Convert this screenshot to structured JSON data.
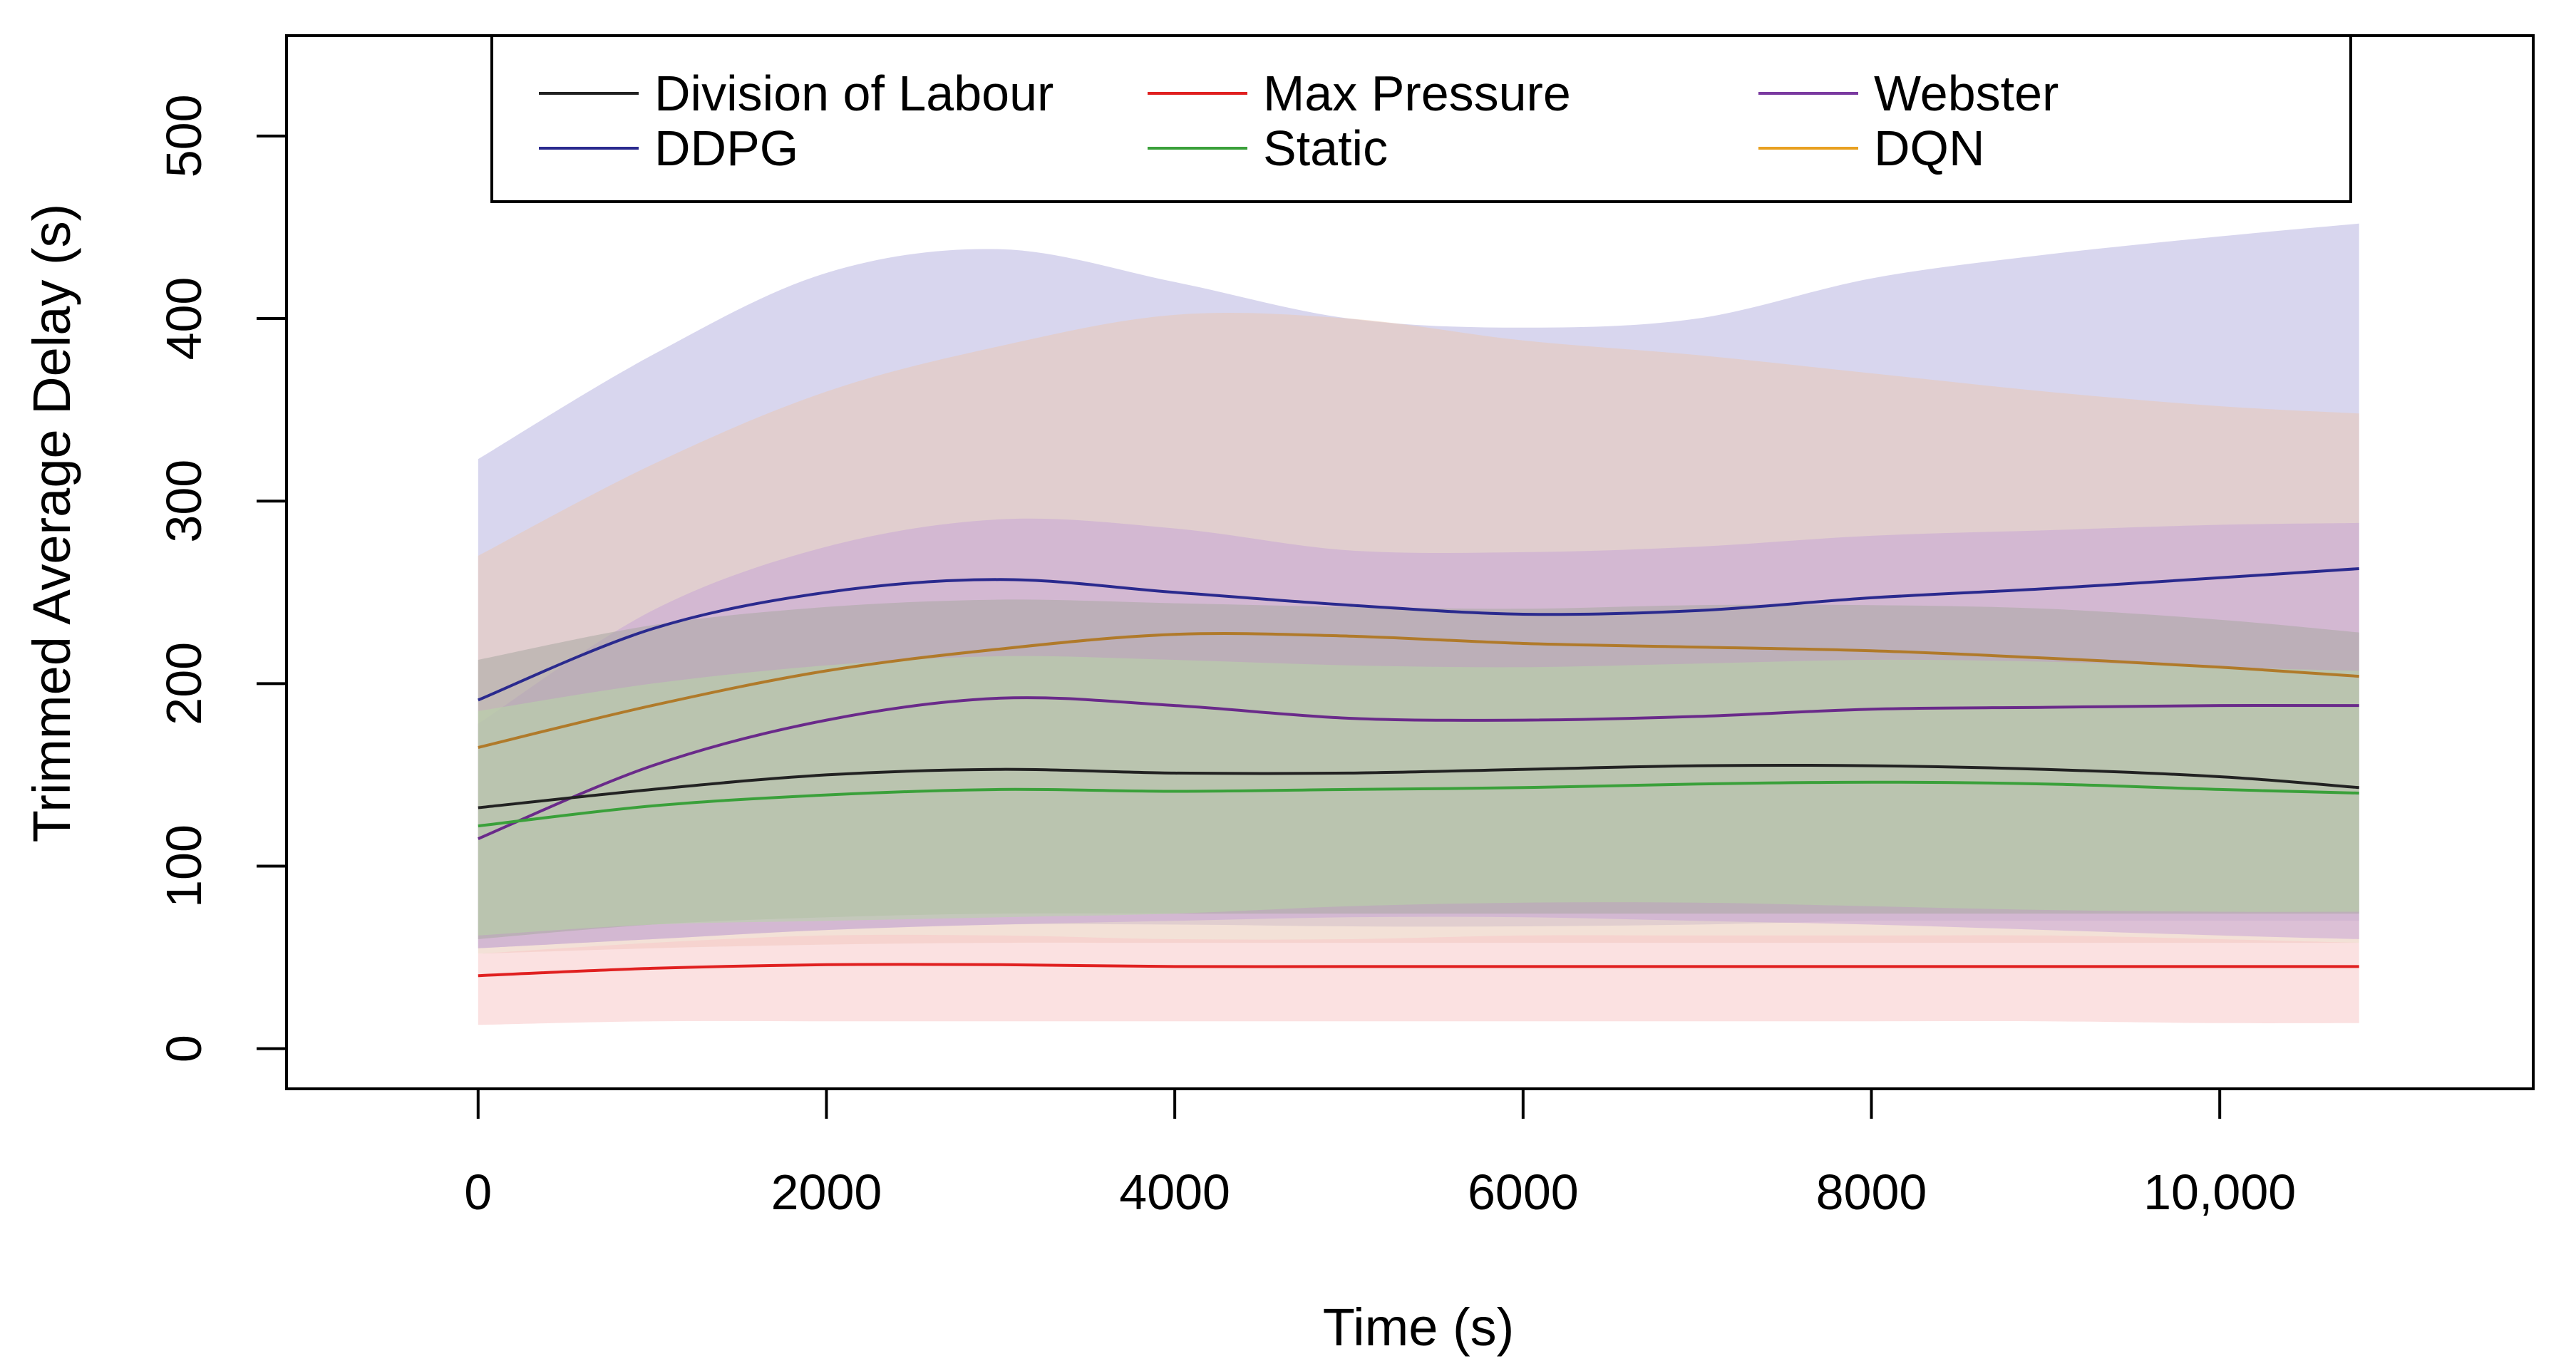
{
  "chart_data": {
    "type": "line",
    "title": "",
    "xlabel": "Time (s)",
    "ylabel": "Trimmed Average Delay (s)",
    "xlim": [
      -1100,
      11800
    ],
    "ylim": [
      -22,
      555
    ],
    "x_ticks": [
      0,
      2000,
      4000,
      6000,
      8000,
      10000
    ],
    "x_tick_labels": [
      "0",
      "2000",
      "4000",
      "6000",
      "8000",
      "10,000"
    ],
    "y_ticks": [
      0,
      100,
      200,
      300,
      400,
      500
    ],
    "y_tick_labels": [
      "0",
      "100",
      "200",
      "300",
      "400",
      "500"
    ],
    "grid": false,
    "legend_position": "top",
    "x": [
      0,
      1000,
      2000,
      3000,
      4000,
      5000,
      6000,
      7000,
      8000,
      9000,
      10000,
      10800
    ],
    "series": [
      {
        "name": "DDPG",
        "color": "#2a2a8e",
        "band_color": "#b8b5e0",
        "values": [
          191,
          230,
          250,
          257,
          250,
          243,
          238,
          240,
          247,
          252,
          258,
          263
        ],
        "lower": [
          55,
          60,
          65,
          68,
          68,
          67,
          67,
          68,
          70,
          70,
          70,
          70
        ],
        "upper": [
          323,
          380,
          425,
          438,
          420,
          400,
          395,
          400,
          422,
          435,
          445,
          452
        ]
      },
      {
        "name": "DQN",
        "color": "#b07a2a",
        "band_color": "#e9c9b6",
        "values": [
          165,
          188,
          207,
          219,
          227,
          226,
          222,
          220,
          218,
          214,
          209,
          204
        ],
        "lower": [
          52,
          55,
          57,
          58,
          58,
          58,
          58,
          58,
          58,
          58,
          58,
          58
        ],
        "upper": [
          270,
          320,
          360,
          385,
          402,
          400,
          388,
          380,
          370,
          360,
          352,
          348
        ]
      },
      {
        "name": "Webster",
        "color": "#6a2a8a",
        "band_color": "#c9a6d6",
        "values": [
          115,
          155,
          180,
          192,
          188,
          181,
          180,
          182,
          186,
          187,
          188,
          188
        ],
        "lower": [
          55,
          60,
          65,
          68,
          70,
          72,
          72,
          70,
          68,
          65,
          62,
          60
        ],
        "upper": [
          178,
          240,
          275,
          290,
          285,
          273,
          272,
          275,
          281,
          284,
          287,
          288
        ]
      },
      {
        "name": "Division of Labour",
        "color": "#222222",
        "band_color": "#a9a8a2",
        "values": [
          132,
          142,
          150,
          153,
          151,
          151,
          153,
          155,
          155,
          153,
          149,
          143
        ],
        "lower": [
          60,
          68,
          72,
          74,
          74,
          74,
          74,
          74,
          74,
          74,
          74,
          74
        ],
        "upper": [
          213,
          232,
          242,
          246,
          244,
          242,
          241,
          243,
          243,
          241,
          235,
          228
        ]
      },
      {
        "name": "Static",
        "color": "#3aa03a",
        "band_color": "#b8d6a8",
        "values": [
          122,
          133,
          139,
          142,
          141,
          142,
          143,
          145,
          146,
          145,
          142,
          140
        ],
        "lower": [
          62,
          68,
          70,
          72,
          74,
          78,
          80,
          80,
          78,
          76,
          75,
          75
        ],
        "upper": [
          185,
          200,
          210,
          215,
          213,
          210,
          209,
          211,
          213,
          212,
          209,
          207
        ]
      },
      {
        "name": "Max Pressure",
        "color": "#e02020",
        "band_color": "#f7c8c8",
        "values": [
          40,
          44,
          46,
          46,
          45,
          45,
          45,
          45,
          45,
          45,
          45,
          45
        ],
        "lower": [
          13,
          15,
          15,
          15,
          15,
          15,
          15,
          15,
          15,
          15,
          14,
          14
        ],
        "upper": [
          52,
          58,
          62,
          62,
          60,
          60,
          62,
          62,
          62,
          62,
          60,
          58
        ]
      }
    ],
    "legend": [
      {
        "name": "Division of Labour",
        "color": "#222222"
      },
      {
        "name": "Max Pressure",
        "color": "#e02020"
      },
      {
        "name": "Webster",
        "color": "#7a3aa0"
      },
      {
        "name": "DDPG",
        "color": "#2a2a8e"
      },
      {
        "name": "Static",
        "color": "#3aa03a"
      },
      {
        "name": "DQN",
        "color": "#e8a020"
      }
    ]
  }
}
